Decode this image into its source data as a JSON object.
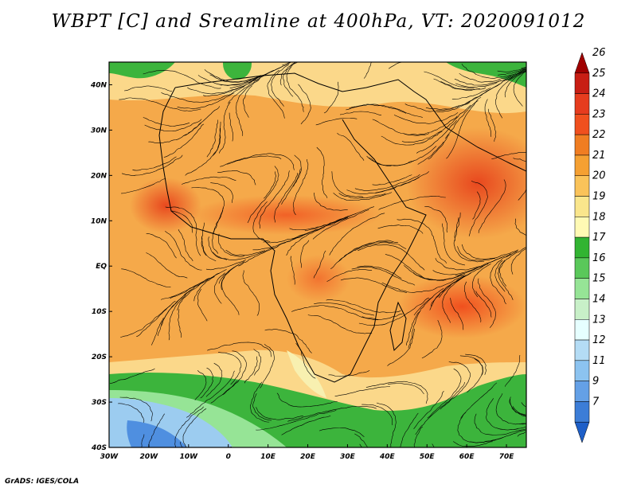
{
  "title": "WBPT [C] and Sreamline at 400hPa, VT: 2020091012",
  "credit": "GrADS: IGES/COLA",
  "map": {
    "lon_range": [
      -30,
      75
    ],
    "lat_range": [
      -40,
      45
    ],
    "x_ticks": [
      "30W",
      "20W",
      "10W",
      "0",
      "10E",
      "20E",
      "30E",
      "40E",
      "50E",
      "60E",
      "70E"
    ],
    "y_ticks": [
      "40N",
      "30N",
      "20N",
      "10N",
      "EQ",
      "10S",
      "20S",
      "30S",
      "40S"
    ]
  },
  "colorbar": {
    "levels": [
      "26",
      "25",
      "24",
      "23",
      "22",
      "21",
      "20",
      "19",
      "18",
      "17",
      "16",
      "15",
      "14",
      "13",
      "12",
      "11",
      "9",
      "7"
    ],
    "colors": [
      "#a00000",
      "#c81e14",
      "#e63c1e",
      "#f0501e",
      "#f07d22",
      "#f5a032",
      "#fac35a",
      "#fae68c",
      "#fffab4",
      "#32b432",
      "#5ac85a",
      "#96e496",
      "#c8f0c8",
      "#e6ffff",
      "#b4dcf5",
      "#8cc3f0",
      "#64a0e6",
      "#3c7dd7",
      "#1e5fc8"
    ]
  }
}
